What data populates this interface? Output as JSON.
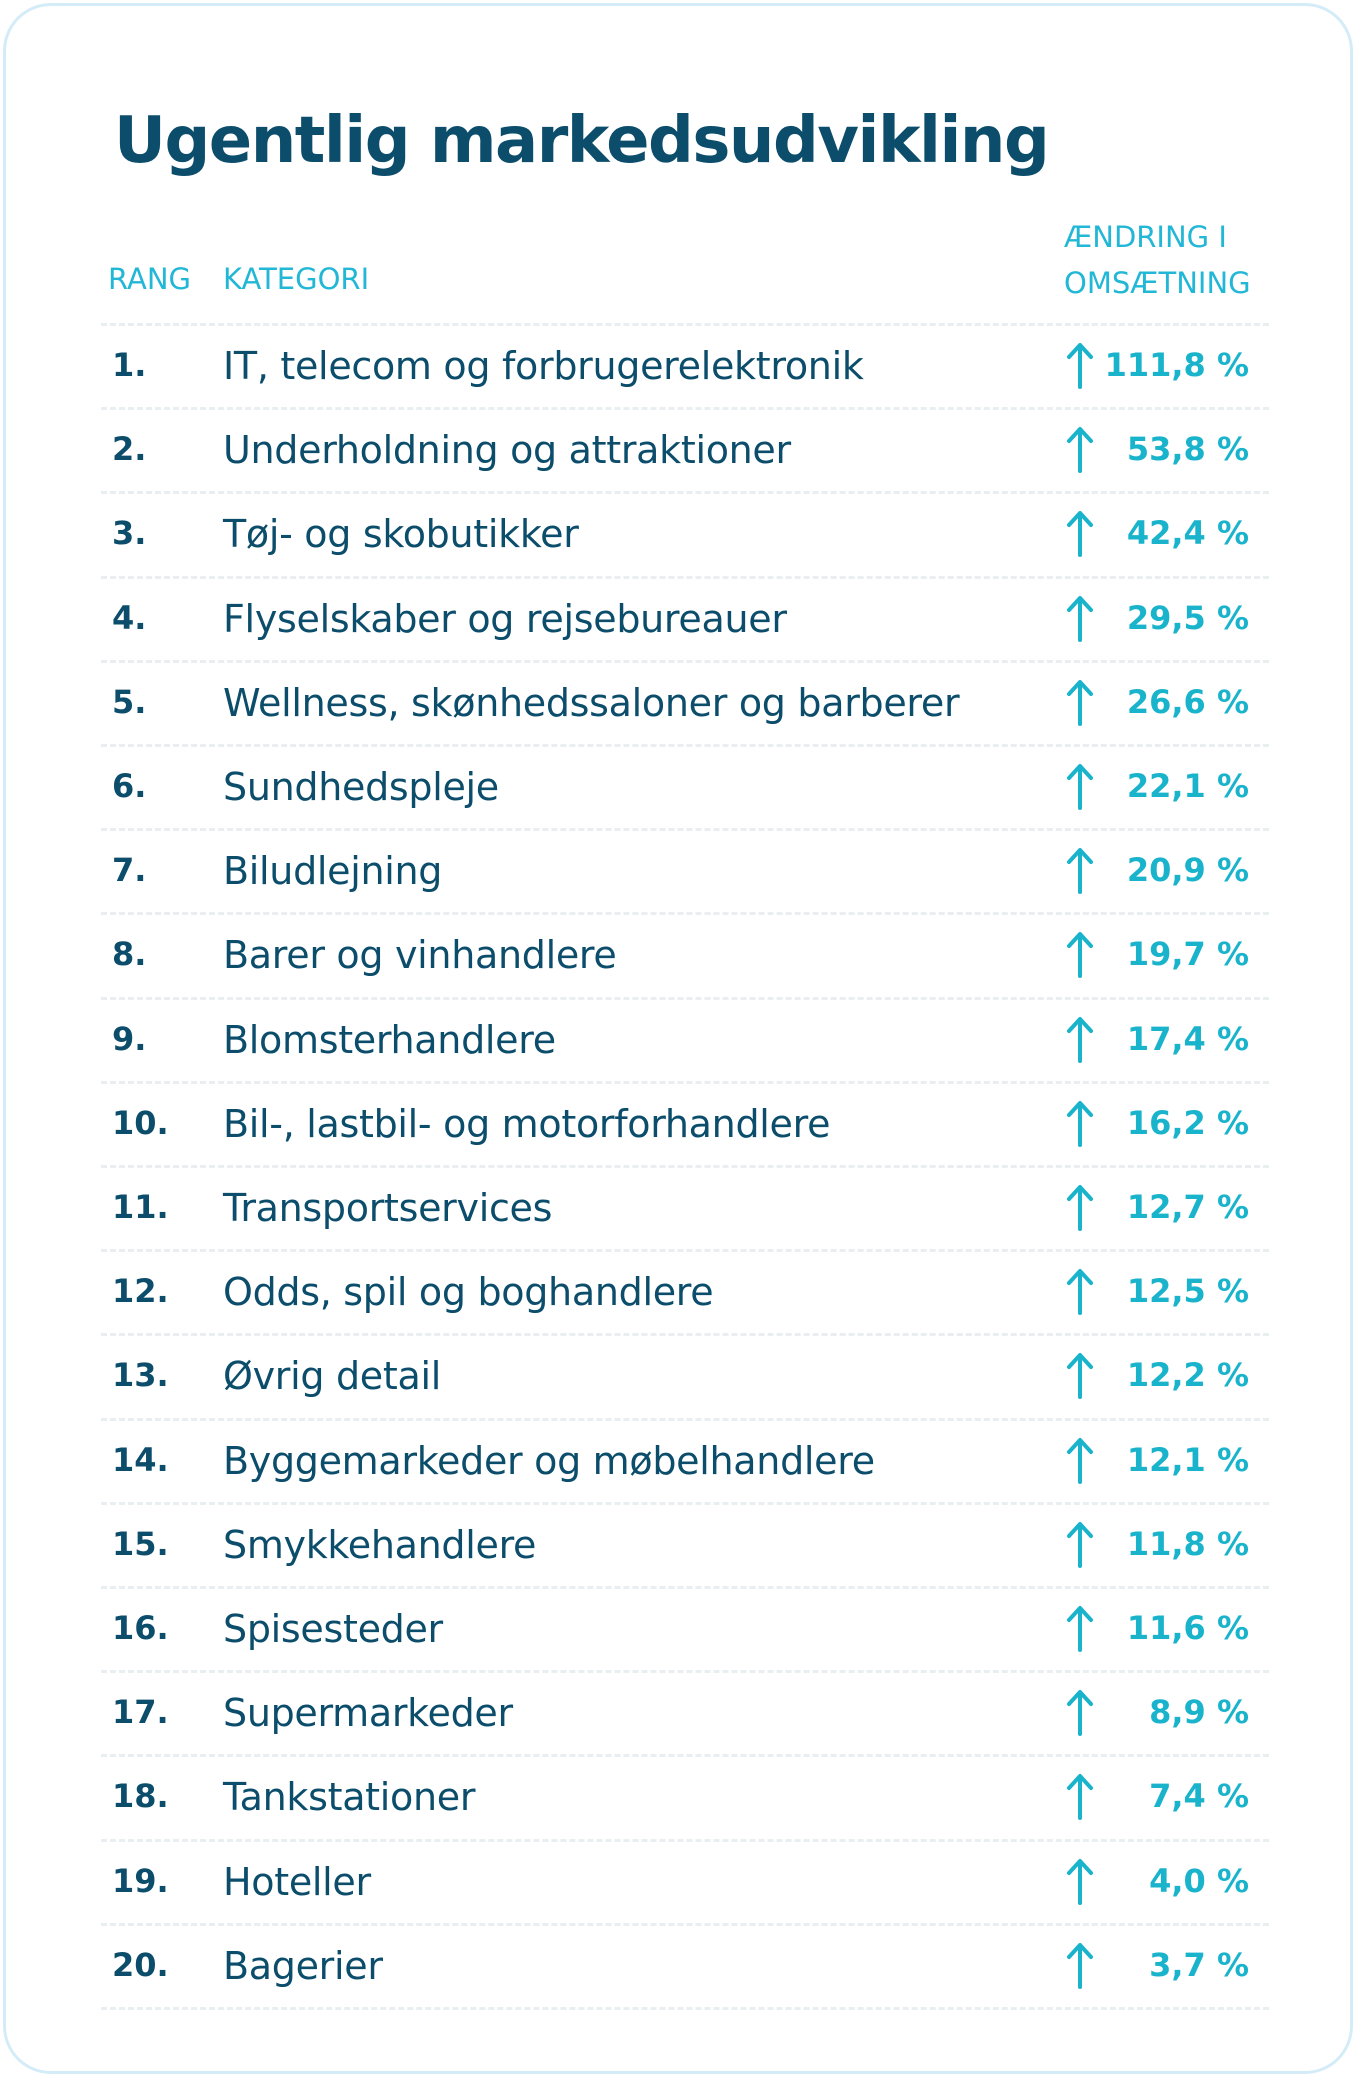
{
  "title": "Ugentlig markedsudvikling",
  "columns": {
    "rank": "RANG",
    "category": "KATEGORI",
    "change_line1": "ÆNDRING I",
    "change_line2": "OMSÆTNING"
  },
  "colors": {
    "title": "#0b4d6b",
    "header": "#22b7d6",
    "value": "#1ab3cc",
    "arrow": "#1ab3cc",
    "border": "#d4ecf7"
  },
  "icons": {
    "trend": "arrow-up-icon"
  },
  "chart_data": {
    "type": "table",
    "title": "Ugentlig markedsudvikling",
    "columns": [
      "RANG",
      "KATEGORI",
      "ÆNDRING I OMSÆTNING"
    ],
    "rows": [
      {
        "rank": "1.",
        "category": "IT, telecom og forbrugerelektronik",
        "change": "111,8 %",
        "value": 111.8
      },
      {
        "rank": "2.",
        "category": "Underholdning og attraktioner",
        "change": "53,8 %",
        "value": 53.8
      },
      {
        "rank": "3.",
        "category": "Tøj- og skobutikker",
        "change": "42,4 %",
        "value": 42.4
      },
      {
        "rank": "4.",
        "category": "Flyselskaber og rejsebureauer",
        "change": "29,5 %",
        "value": 29.5
      },
      {
        "rank": "5.",
        "category": "Wellness, skønhedssaloner og barberer",
        "change": "26,6 %",
        "value": 26.6
      },
      {
        "rank": "6.",
        "category": "Sundhedspleje",
        "change": "22,1 %",
        "value": 22.1
      },
      {
        "rank": "7.",
        "category": "Biludlejning",
        "change": "20,9 %",
        "value": 20.9
      },
      {
        "rank": "8.",
        "category": "Barer og vinhandlere",
        "change": "19,7 %",
        "value": 19.7
      },
      {
        "rank": "9.",
        "category": "Blomsterhandlere",
        "change": "17,4 %",
        "value": 17.4
      },
      {
        "rank": "10.",
        "category": "Bil-, lastbil- og motorforhandlere",
        "change": "16,2 %",
        "value": 16.2
      },
      {
        "rank": "11.",
        "category": "Transportservices",
        "change": "12,7 %",
        "value": 12.7
      },
      {
        "rank": "12.",
        "category": "Odds, spil og boghandlere",
        "change": "12,5 %",
        "value": 12.5
      },
      {
        "rank": "13.",
        "category": "Øvrig detail",
        "change": "12,2 %",
        "value": 12.2
      },
      {
        "rank": "14.",
        "category": "Byggemarkeder og møbelhandlere",
        "change": "12,1 %",
        "value": 12.1
      },
      {
        "rank": "15.",
        "category": "Smykkehandlere",
        "change": "11,8 %",
        "value": 11.8
      },
      {
        "rank": "16.",
        "category": "Spisesteder",
        "change": "11,6 %",
        "value": 11.6
      },
      {
        "rank": "17.",
        "category": "Supermarkeder",
        "change": "8,9 %",
        "value": 8.9
      },
      {
        "rank": "18.",
        "category": "Tankstationer",
        "change": "7,4 %",
        "value": 7.4
      },
      {
        "rank": "19.",
        "category": "Hoteller",
        "change": "4,0 %",
        "value": 4.0
      },
      {
        "rank": "20.",
        "category": "Bagerier",
        "change": "3,7 %",
        "value": 3.7
      }
    ]
  }
}
